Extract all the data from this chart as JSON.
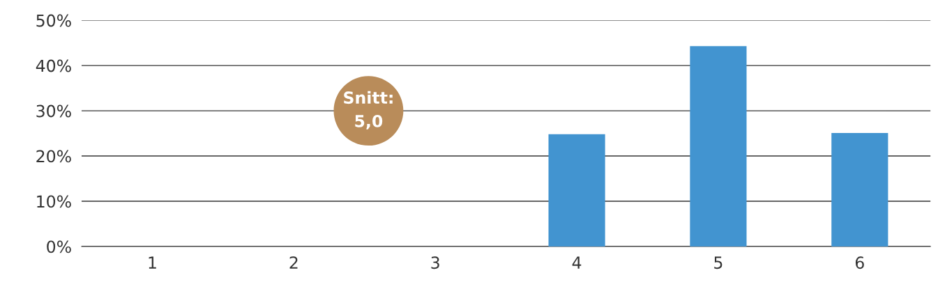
{
  "chart_data": {
    "type": "bar",
    "categories": [
      "1",
      "2",
      "3",
      "4",
      "5",
      "6"
    ],
    "values": [
      0,
      0,
      0,
      24.8,
      44.3,
      25.1
    ],
    "color": "#4294d0",
    "ylim": [
      0,
      50
    ],
    "yticks": [
      {
        "value": 0,
        "label": "0%"
      },
      {
        "value": 10,
        "label": "10%"
      },
      {
        "value": 20,
        "label": "20%"
      },
      {
        "value": 30,
        "label": "30%"
      },
      {
        "value": 40,
        "label": "40%"
      },
      {
        "value": 50,
        "label": "50%"
      }
    ],
    "grid": "y",
    "annotations": [
      "Snitt:\n5,0"
    ]
  }
}
